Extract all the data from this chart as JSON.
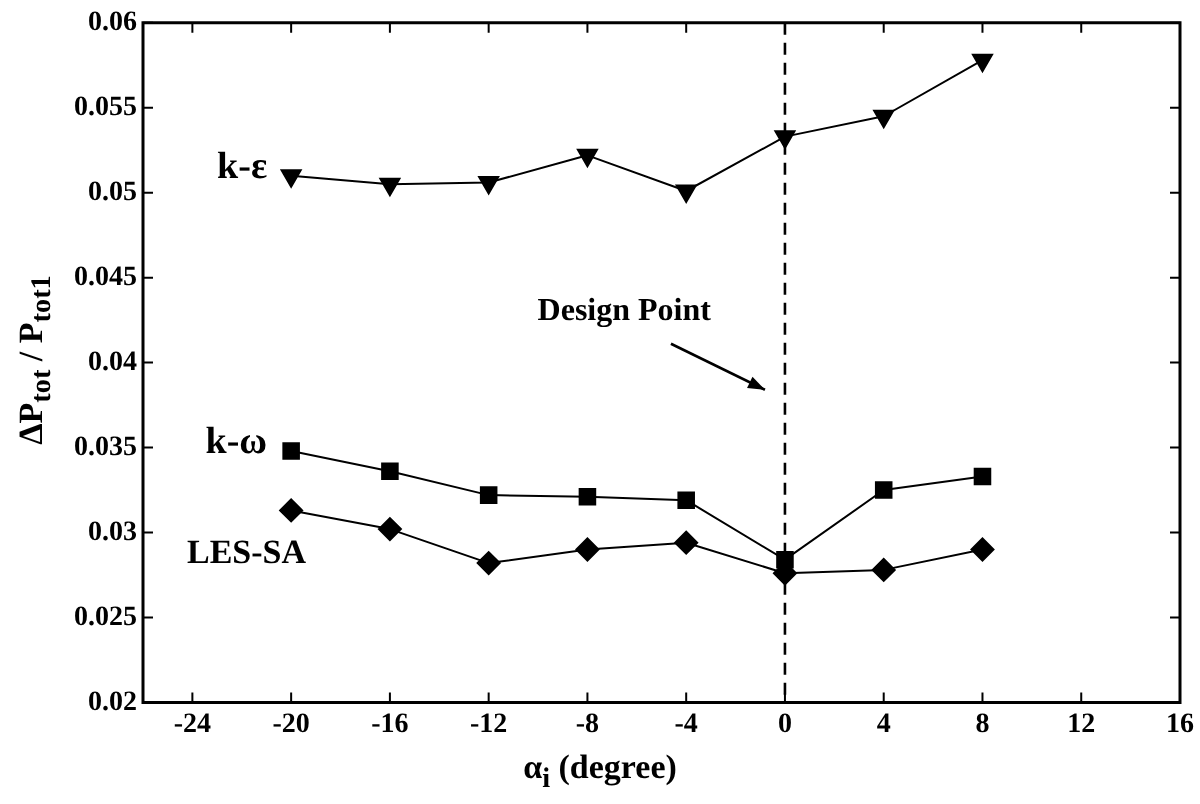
{
  "chart_data": {
    "type": "line",
    "xlabel": "α$_{i}$ (degree)",
    "ylabel": "ΔP$_{tot}$ / P$_{tot1}$",
    "x": [
      -20,
      -16,
      -12,
      -8,
      -4,
      0,
      4,
      8
    ],
    "series": [
      {
        "name": "k-ε",
        "color": "#000000",
        "marker": "triangle",
        "values": [
          0.051,
          0.0505,
          0.0506,
          0.0522,
          0.0501,
          0.0533,
          0.0545,
          0.0578
        ]
      },
      {
        "name": "k-ω",
        "color": "#000000",
        "marker": "square",
        "values": [
          0.0348,
          0.0336,
          0.0322,
          0.0321,
          0.0319,
          0.0284,
          0.0325,
          0.0333
        ]
      },
      {
        "name": "LES-SA",
        "color": "#000000",
        "marker": "diamond",
        "values": [
          0.0313,
          0.0302,
          0.0282,
          0.029,
          0.0294,
          0.0276,
          0.0278,
          0.029
        ]
      }
    ],
    "xlim": [
      -26,
      16
    ],
    "xticks": [
      -24,
      -20,
      -16,
      -12,
      -8,
      -4,
      0,
      4,
      8,
      12,
      16
    ],
    "ylim": [
      0.02,
      0.06
    ],
    "yticks": [
      0.02,
      0.025,
      0.03,
      0.035,
      0.04,
      0.045,
      0.05,
      0.055,
      0.06
    ],
    "ref_lines": [
      {
        "axis": "x",
        "value": 0,
        "color": "#000000",
        "line_style": "dashed"
      }
    ],
    "annotations": [
      "Design Point"
    ],
    "grid": false,
    "legend": false,
    "line_style": "solid"
  }
}
